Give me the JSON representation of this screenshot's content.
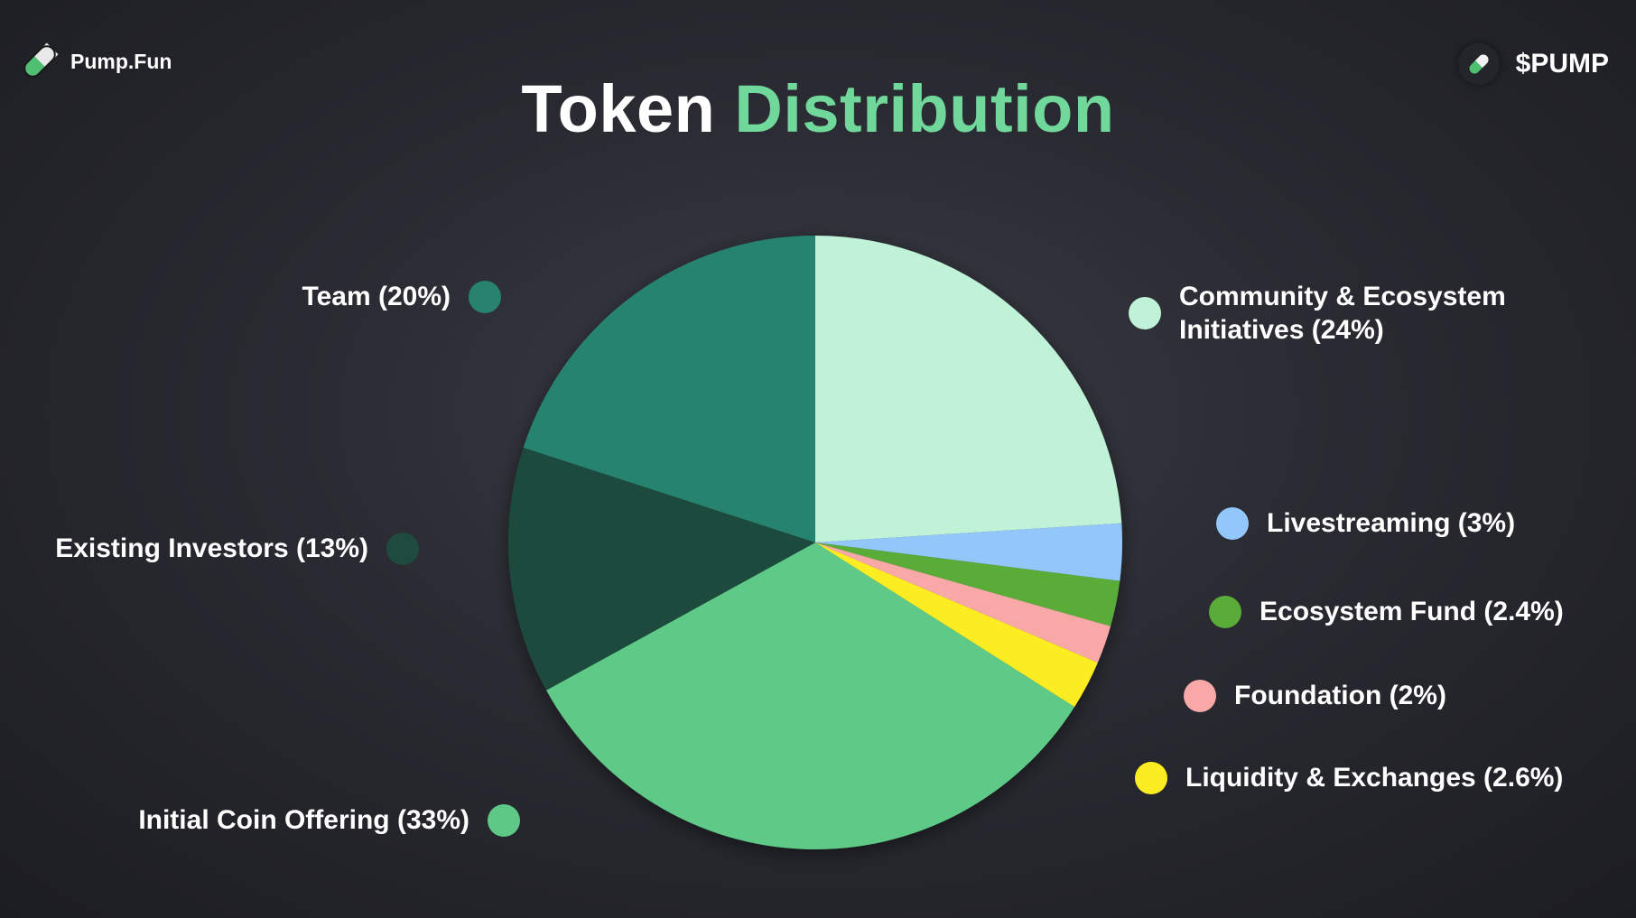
{
  "brand": {
    "name": "Pump.Fun",
    "icon": "pill-icon"
  },
  "ticker": {
    "label": "$PUMP",
    "icon": "pill-icon"
  },
  "title": {
    "word1": "Token",
    "word2": "Distribution"
  },
  "colors": {
    "accent": "#6fd89a",
    "background": "#2a2b32"
  },
  "chart_data": {
    "type": "pie",
    "title": "Token Distribution",
    "slices": [
      {
        "label": "Community & Ecosystem Initiatives (24%)",
        "value": 24,
        "color": "#bff2d6"
      },
      {
        "label": "Livestreaming (3%)",
        "value": 3,
        "color": "#93c7fb"
      },
      {
        "label": "Ecosystem Fund (2.4%)",
        "value": 2.4,
        "color": "#5aac38"
      },
      {
        "label": "Foundation (2%)",
        "value": 2,
        "color": "#f8a8a6"
      },
      {
        "label": "Liquidity & Exchanges (2.6%)",
        "value": 2.6,
        "color": "#fced22"
      },
      {
        "label": "Initial Coin Offering (33%)",
        "value": 33,
        "color": "#5ec987"
      },
      {
        "label": "Existing Investors (13%)",
        "value": 13,
        "color": "#1f4b3e"
      },
      {
        "label": "Team (20%)",
        "value": 20,
        "color": "#27836f"
      }
    ]
  }
}
